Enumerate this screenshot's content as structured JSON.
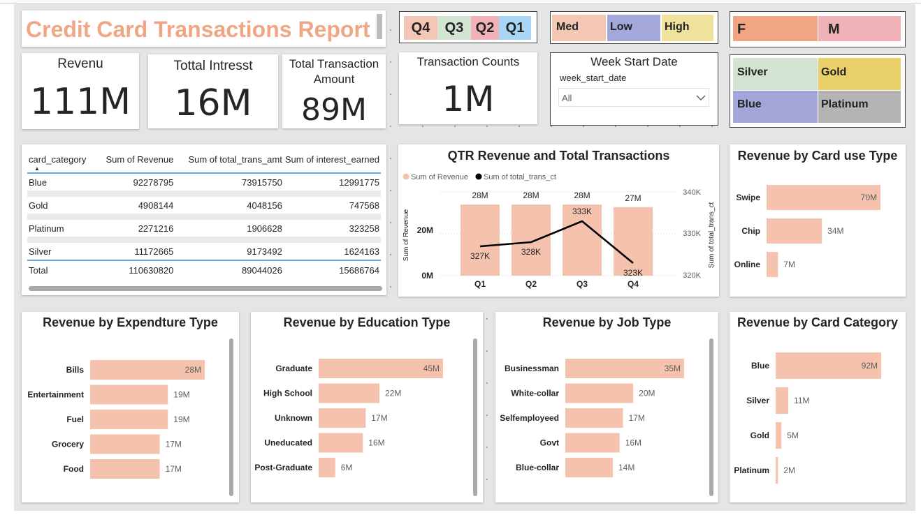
{
  "report_title": "Credit Card Transactions Report",
  "kpis": {
    "revenue": {
      "label": "Revenu",
      "value": "111M"
    },
    "interest": {
      "label": "Tottal Intresst",
      "value": "16M"
    },
    "trans_amount": {
      "label_line1": "Total Transaction",
      "label_line2": "Amount",
      "value": "89M"
    },
    "trans_count": {
      "label": "Transaction Counts",
      "value": "1M"
    }
  },
  "slicers": {
    "quarters": [
      {
        "label": "Q4",
        "color": "#f4c7b4"
      },
      {
        "label": "Q3",
        "color": "#d4e4d3"
      },
      {
        "label": "Q2",
        "color": "#f2b1b8"
      },
      {
        "label": "Q1",
        "color": "#a9d6f4"
      }
    ],
    "levels": [
      {
        "label": "Med",
        "color": "#f4c7b4"
      },
      {
        "label": "Low",
        "color": "#a3a7d9"
      },
      {
        "label": "High",
        "color": "#efe39b"
      }
    ],
    "gender": [
      {
        "label": "F",
        "color": "#f2a583"
      },
      {
        "label": "M",
        "color": "#efb1b6"
      }
    ],
    "categories": [
      {
        "label": "Silver",
        "color": "#d3e3d2"
      },
      {
        "label": "Gold",
        "color": "#e9d068"
      },
      {
        "label": "Blue",
        "color": "#a2a6d8"
      },
      {
        "label": "Platinum",
        "color": "#b4b4b4"
      }
    ],
    "week": {
      "title": "Week Start Date",
      "field": "week_start_date",
      "selected": "All"
    }
  },
  "table": {
    "headers": [
      "card_category",
      "Sum of Revenue",
      "Sum of total_trans_amt",
      "Sum of interest_earned"
    ],
    "rows": [
      [
        "Blue",
        "92278795",
        "73915750",
        "12991775"
      ],
      [
        "Gold",
        "4908144",
        "4048156",
        "747568"
      ],
      [
        "Platinum",
        "2271216",
        "1906628",
        "323258"
      ],
      [
        "Silver",
        "11172665",
        "9173492",
        "1624163"
      ]
    ],
    "total": [
      "Total",
      "110630820",
      "89044026",
      "15686764"
    ]
  },
  "charts": {
    "qtr": {
      "title": "QTR Revenue and Total Transactions",
      "legend": [
        "Sum of Revenue",
        "Sum of total_trans_ct"
      ],
      "y_left_label": "Sum of Revenue",
      "y_right_label": "Sum of total_trans_ct",
      "y_left_ticks": [
        "20M",
        "0M"
      ],
      "y_right_ticks": [
        "340K",
        "330K",
        "320K"
      ]
    },
    "card_use": {
      "title": "Revenue by Card use Type"
    },
    "expenditure": {
      "title": "Revenue by Expendture Type"
    },
    "education": {
      "title": "Revenue by Education Type"
    },
    "job": {
      "title": "Revenue by Job Type"
    },
    "card_category": {
      "title": "Revenue by Card Category"
    }
  },
  "chart_data": [
    {
      "type": "bar",
      "title": "QTR Revenue and Total Transactions",
      "categories": [
        "Q1",
        "Q2",
        "Q3",
        "Q4"
      ],
      "series": [
        {
          "name": "Sum of Revenue",
          "values": [
            28,
            28,
            28,
            27
          ],
          "labels": [
            "28M",
            "28M",
            "28M",
            "27M"
          ],
          "color": "#f4c2ad"
        },
        {
          "name": "Sum of total_trans_ct",
          "type": "line",
          "values": [
            327,
            328,
            333,
            323
          ],
          "labels": [
            "327K",
            "328K",
            "333K",
            "323K"
          ],
          "color": "#000000"
        }
      ],
      "ylabel": "Sum of Revenue",
      "y2label": "Sum of total_trans_ct",
      "ylim": [
        0,
        33
      ],
      "y2lim": [
        320,
        340
      ]
    },
    {
      "type": "bar",
      "title": "Revenue by Card use Type",
      "categories": [
        "Swipe",
        "Chip",
        "Online"
      ],
      "values": [
        70,
        34,
        7
      ],
      "labels": [
        "70M",
        "34M",
        "7M"
      ]
    },
    {
      "type": "bar",
      "title": "Revenue by Expendture Type",
      "categories": [
        "Bills",
        "Entertainment",
        "Fuel",
        "Grocery",
        "Food"
      ],
      "values": [
        28,
        19,
        19,
        17,
        17
      ],
      "labels": [
        "28M",
        "19M",
        "19M",
        "17M",
        "17M"
      ]
    },
    {
      "type": "bar",
      "title": "Revenue by Education Type",
      "categories": [
        "Graduate",
        "High School",
        "Unknown",
        "Uneducated",
        "Post-Graduate"
      ],
      "values": [
        45,
        22,
        17,
        16,
        6
      ],
      "labels": [
        "45M",
        "22M",
        "17M",
        "16M",
        "6M"
      ]
    },
    {
      "type": "bar",
      "title": "Revenue by Job Type",
      "categories": [
        "Businessman",
        "White-collar",
        "Selfemployeed",
        "Govt",
        "Blue-collar"
      ],
      "values": [
        35,
        20,
        17,
        16,
        14
      ],
      "labels": [
        "35M",
        "20M",
        "17M",
        "16M",
        "14M"
      ]
    },
    {
      "type": "bar",
      "title": "Revenue by Card Category",
      "categories": [
        "Blue",
        "Silver",
        "Gold",
        "Platinum"
      ],
      "values": [
        92,
        11,
        5,
        2
      ],
      "labels": [
        "92M",
        "11M",
        "5M",
        "2M"
      ]
    }
  ]
}
